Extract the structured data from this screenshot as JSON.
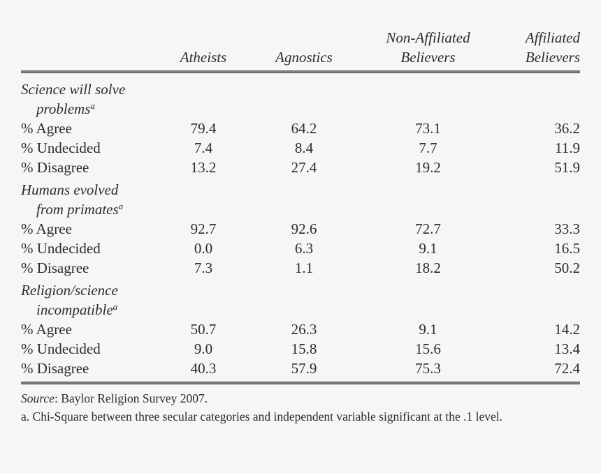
{
  "colors": {
    "background": "#f5f6f5",
    "text": "#2d2c2a",
    "rule": "#57575a"
  },
  "header": {
    "atheists": "Atheists",
    "agnostics": "Agnostics",
    "non_affiliated_line1": "Non-Affiliated",
    "non_affiliated_line2": "Believers",
    "affiliated_line1": "Affiliated",
    "affiliated_line2": "Believers"
  },
  "groups": [
    {
      "label_line1": "Science will solve",
      "label_line2": "problems",
      "note_mark": "a",
      "rows": [
        {
          "label": "% Agree",
          "values": [
            "79.4",
            "64.2",
            "73.1",
            "36.2"
          ]
        },
        {
          "label": "% Undecided",
          "values": [
            "7.4",
            "8.4",
            "7.7",
            "11.9"
          ]
        },
        {
          "label": "% Disagree",
          "values": [
            "13.2",
            "27.4",
            "19.2",
            "51.9"
          ]
        }
      ]
    },
    {
      "label_line1": "Humans evolved",
      "label_line2": "from primates",
      "note_mark": "a",
      "rows": [
        {
          "label": "% Agree",
          "values": [
            "92.7",
            "92.6",
            "72.7",
            "33.3"
          ]
        },
        {
          "label": "% Undecided",
          "values": [
            "0.0",
            "6.3",
            "9.1",
            "16.5"
          ]
        },
        {
          "label": "% Disagree",
          "values": [
            "7.3",
            "1.1",
            "18.2",
            "50.2"
          ]
        }
      ]
    },
    {
      "label_line1": "Religion/science",
      "label_line2": "incompatible",
      "note_mark": "a",
      "rows": [
        {
          "label": "% Agree",
          "values": [
            "50.7",
            "26.3",
            "9.1",
            "14.2"
          ]
        },
        {
          "label": "% Undecided",
          "values": [
            "9.0",
            "15.8",
            "15.6",
            "13.4"
          ]
        },
        {
          "label": "% Disagree",
          "values": [
            "40.3",
            "57.9",
            "75.3",
            "72.4"
          ]
        }
      ]
    }
  ],
  "footer": {
    "source_label": "Source",
    "source_text": ": Baylor Religion Survey 2007.",
    "note": "a. Chi-Square between three secular categories and independent variable significant at the .1 level."
  }
}
